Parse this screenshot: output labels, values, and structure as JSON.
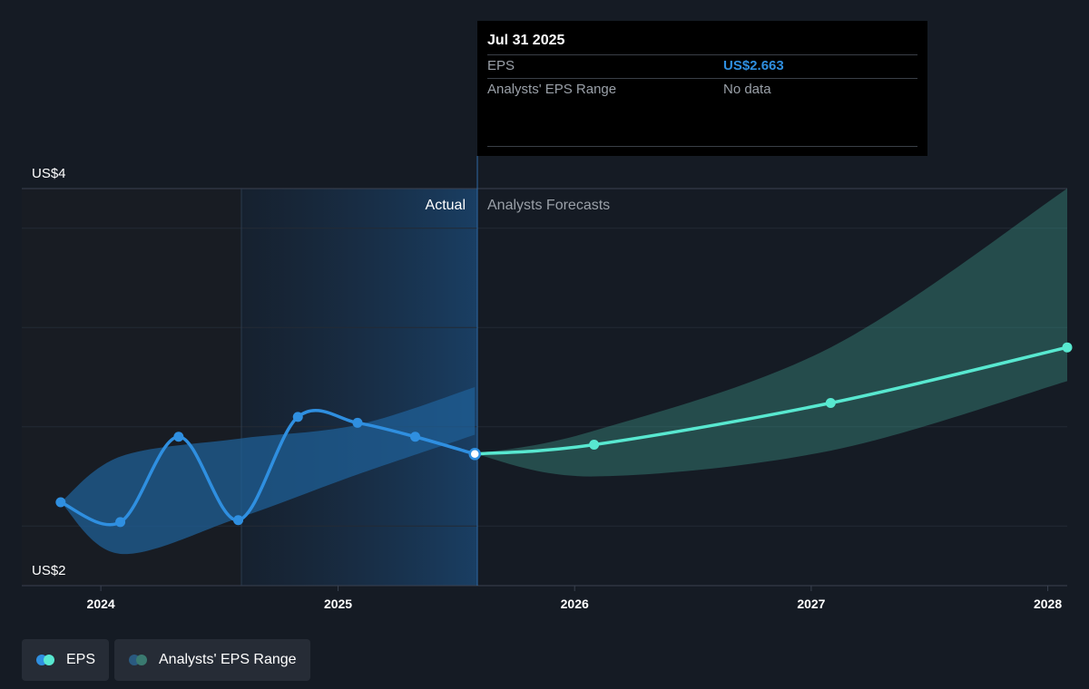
{
  "tooltip": {
    "date": "Jul 31 2025",
    "rows": [
      {
        "label": "EPS",
        "value": "US$2.663"
      },
      {
        "label": "Analysts' EPS Range",
        "value": "No data"
      }
    ]
  },
  "labels": {
    "actual": "Actual",
    "forecast": "Analysts Forecasts"
  },
  "legend": [
    {
      "label": "EPS",
      "colors": [
        "#2f8fe0",
        "#58e8d0"
      ]
    },
    {
      "label": "Analysts' EPS Range",
      "colors": [
        "#2a5a80",
        "#3a7a70"
      ]
    }
  ],
  "colors": {
    "background": "#151b24",
    "eps_actual": "#2f8fe0",
    "eps_forecast": "#58e8d0",
    "range_actual": "#1f5f96",
    "range_forecast": "#3a8a7e"
  },
  "chart_data": {
    "type": "line",
    "x_tick_labels": [
      "2024",
      "2025",
      "2026",
      "2027",
      "2028"
    ],
    "y_tick_labels": [
      "US$4",
      "US$2"
    ],
    "ylim": [
      2,
      4
    ],
    "grid": true,
    "legend_position": "bottom-left",
    "series": [
      {
        "name": "EPS",
        "values": [
          {
            "x": "2023-10-31",
            "y": 2.42
          },
          {
            "x": "2024-01-31",
            "y": 2.32
          },
          {
            "x": "2024-04-30",
            "y": 2.75
          },
          {
            "x": "2024-07-31",
            "y": 2.33
          },
          {
            "x": "2024-10-31",
            "y": 2.85
          },
          {
            "x": "2025-01-31",
            "y": 2.82
          },
          {
            "x": "2025-04-30",
            "y": 2.75
          },
          {
            "x": "2025-07-31",
            "y": 2.663
          }
        ]
      },
      {
        "name": "EPS",
        "values": [
          {
            "x": "2025-07-31",
            "y": 2.663
          },
          {
            "x": "2026-01-31",
            "y": 2.71
          },
          {
            "x": "2027-01-31",
            "y": 2.92
          },
          {
            "x": "2028-01-31",
            "y": 3.2
          }
        ]
      },
      {
        "name": "Analysts' EPS Range",
        "high": [
          {
            "x": "2023-10-31",
            "y": 2.42
          },
          {
            "x": "2024-01-31",
            "y": 2.65
          },
          {
            "x": "2024-07-31",
            "y": 2.74
          },
          {
            "x": "2025-01-31",
            "y": 2.81
          },
          {
            "x": "2025-07-31",
            "y": 3.0
          }
        ],
        "low": [
          {
            "x": "2023-10-31",
            "y": 2.42
          },
          {
            "x": "2024-01-31",
            "y": 2.16
          },
          {
            "x": "2024-07-31",
            "y": 2.34
          },
          {
            "x": "2025-01-31",
            "y": 2.56
          },
          {
            "x": "2025-07-31",
            "y": 2.76
          }
        ]
      },
      {
        "name": "Analysts' EPS Range",
        "high": [
          {
            "x": "2025-07-31",
            "y": 2.663
          },
          {
            "x": "2026-01-31",
            "y": 2.78
          },
          {
            "x": "2027-01-31",
            "y": 3.2
          },
          {
            "x": "2028-01-31",
            "y": 4.0
          }
        ],
        "low": [
          {
            "x": "2025-07-31",
            "y": 2.663
          },
          {
            "x": "2026-01-31",
            "y": 2.55
          },
          {
            "x": "2027-01-31",
            "y": 2.68
          },
          {
            "x": "2028-01-31",
            "y": 3.03
          }
        ]
      }
    ]
  }
}
